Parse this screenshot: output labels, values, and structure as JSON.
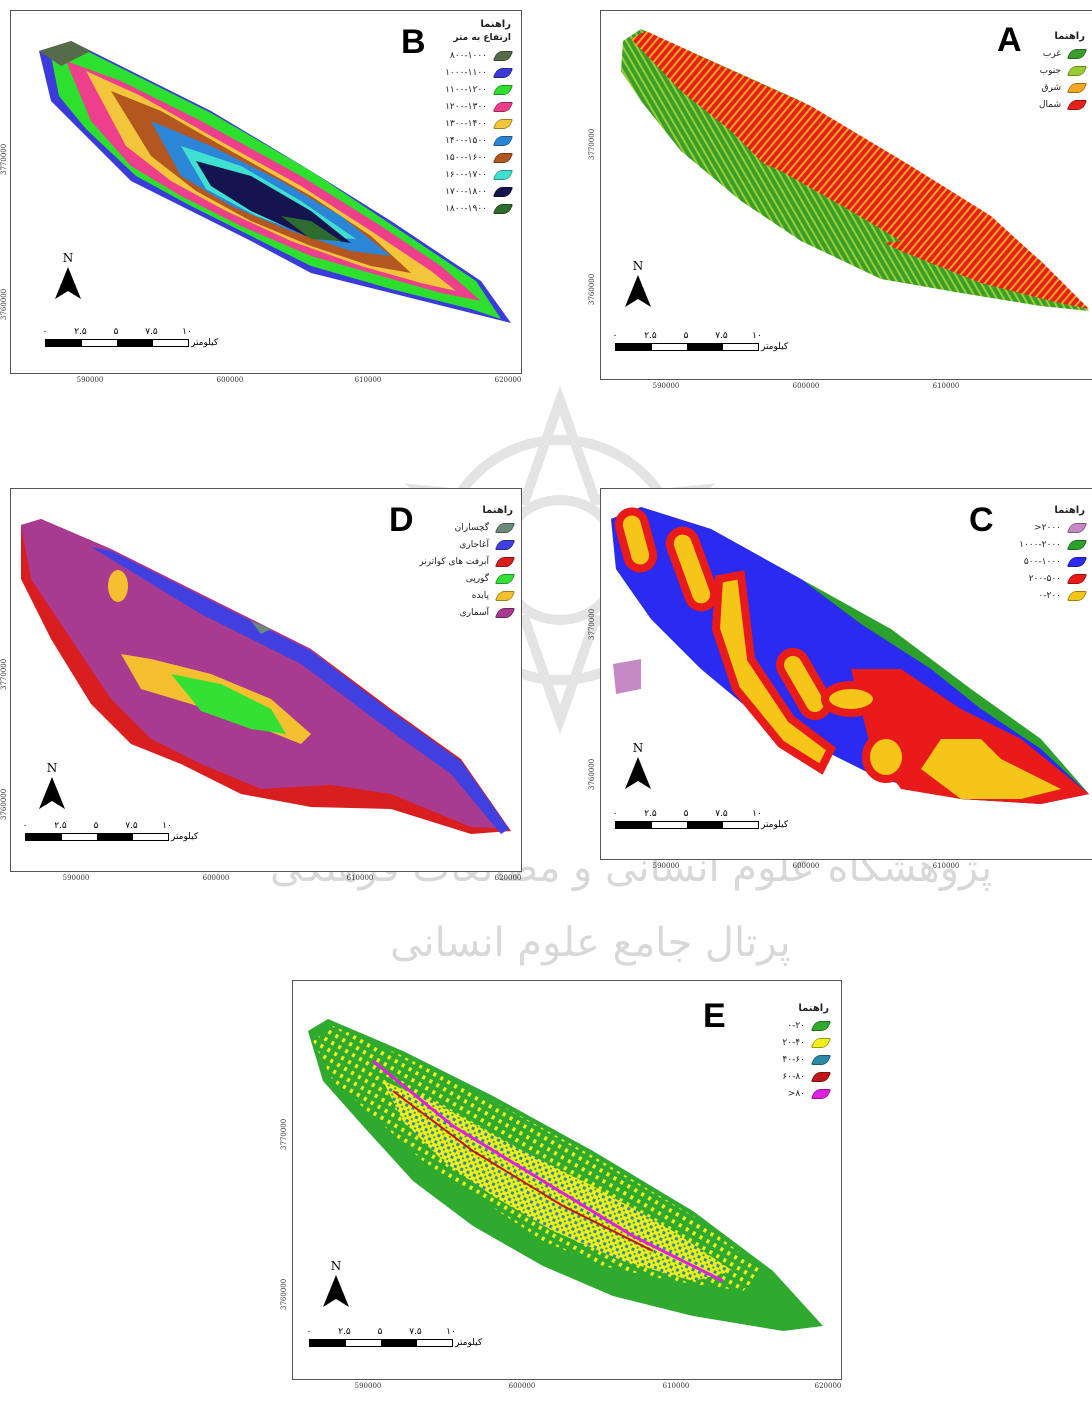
{
  "watermark": {
    "line1": "پژوهشگاه علوم انسانی و مطالعات فرهنگی",
    "line2": "پرتال جامع علوم انسانی"
  },
  "common": {
    "north": "N",
    "legend_title": "راهنما",
    "scale_ticks": [
      "۰",
      "۲.۵",
      "۵",
      "۷.۵",
      "۱۰"
    ],
    "scale_unit": "کیلومتر",
    "x_ticks": [
      "590000",
      "600000",
      "610000",
      "620000"
    ],
    "y_ticks": [
      "3770000",
      "3760000"
    ]
  },
  "maps": {
    "A": {
      "letter": "A",
      "legend": [
        {
          "label": "غرب",
          "color": "#3a9e2a"
        },
        {
          "label": "جنوب",
          "color": "#9acd32"
        },
        {
          "label": "شرق",
          "color": "#f5a623"
        },
        {
          "label": "شمال",
          "color": "#e8201a"
        }
      ]
    },
    "B": {
      "letter": "B",
      "legend_subtitle": "ارتفاع به متر",
      "legend": [
        {
          "label": "۸۰۰-۱۰۰۰",
          "color": "#556b4a"
        },
        {
          "label": "۱۰۰۰-۱۱۰۰",
          "color": "#3b3bdc"
        },
        {
          "label": "۱۱۰۰-۱۲۰۰",
          "color": "#2ee02e"
        },
        {
          "label": "۱۲۰۰-۱۳۰۰",
          "color": "#ee3f8c"
        },
        {
          "label": "۱۳۰۰-۱۴۰۰",
          "color": "#f2c53a"
        },
        {
          "label": "۱۴۰۰-۱۵۰۰",
          "color": "#2b86d8"
        },
        {
          "label": "۱۵۰۰-۱۶۰۰",
          "color": "#b4561f"
        },
        {
          "label": "۱۶۰۰-۱۷۰۰",
          "color": "#3fe0d0"
        },
        {
          "label": "۱۷۰۰-۱۸۰۰",
          "color": "#141450"
        },
        {
          "label": "۱۸۰۰-۱۹۰۰",
          "color": "#2e6b2e"
        }
      ]
    },
    "C": {
      "letter": "C",
      "legend": [
        {
          "label": "۲۰۰۰<",
          "color": "#c58ac5"
        },
        {
          "label": "۱۰۰۰-۲۰۰۰",
          "color": "#2ca02c"
        },
        {
          "label": "۵۰۰-۱۰۰۰",
          "color": "#2a2af0"
        },
        {
          "label": "۲۰۰-۵۰۰",
          "color": "#e81a1a"
        },
        {
          "label": "۰-۲۰۰",
          "color": "#f5c518"
        }
      ]
    },
    "D": {
      "letter": "D",
      "legend": [
        {
          "label": "گچساران",
          "color": "#6a8a7a"
        },
        {
          "label": "آغاجاری",
          "color": "#4040e0"
        },
        {
          "label": "آبرفت های کواترنر",
          "color": "#d81e1e"
        },
        {
          "label": "گورپی",
          "color": "#33e033"
        },
        {
          "label": "پابده",
          "color": "#f5c030"
        },
        {
          "label": "آسماری",
          "color": "#a83a90"
        }
      ]
    },
    "E": {
      "letter": "E",
      "legend": [
        {
          "label": "۰-۲۰",
          "color": "#2faa2f"
        },
        {
          "label": "۲۰-۴۰",
          "color": "#f2ee1a"
        },
        {
          "label": "۴۰-۶۰",
          "color": "#2b8aa8"
        },
        {
          "label": "۶۰-۸۰",
          "color": "#c01818"
        },
        {
          "label": "۸۰<",
          "color": "#e020e0"
        }
      ]
    }
  }
}
